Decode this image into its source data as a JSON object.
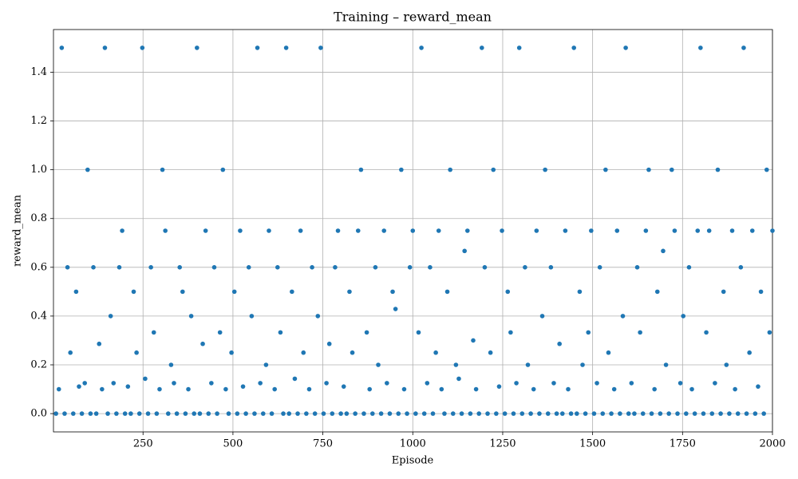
{
  "chart_data": {
    "type": "scatter",
    "title": "Training – reward_mean",
    "x_label": "Episode",
    "y_label": "reward_mean",
    "color": "#1f77b4",
    "grid": true,
    "xlim": [
      1,
      2000
    ],
    "xticks": [
      250,
      500,
      750,
      1000,
      1250,
      1500,
      1750,
      2000
    ],
    "ylim": [
      -0.075,
      1.575
    ],
    "yticks": [
      {
        "value": 0,
        "label": "0.0"
      },
      0.2,
      0.4,
      0.6,
      0.8,
      {
        "value": 1,
        "label": "1.0"
      },
      1.2,
      1.4
    ],
    "x": [
      8,
      16,
      24,
      32,
      40,
      48,
      56,
      64,
      72,
      80,
      88,
      96,
      104,
      112,
      120,
      128,
      136,
      144,
      152,
      160,
      168,
      176,
      184,
      192,
      200,
      208,
      216,
      224,
      232,
      240,
      248,
      256,
      264,
      272,
      280,
      288,
      296,
      304,
      312,
      320,
      328,
      336,
      344,
      352,
      360,
      368,
      376,
      384,
      392,
      400,
      408,
      416,
      424,
      432,
      440,
      448,
      456,
      464,
      472,
      480,
      488,
      496,
      504,
      512,
      520,
      528,
      536,
      544,
      552,
      560,
      568,
      576,
      584,
      592,
      600,
      608,
      616,
      624,
      632,
      640,
      648,
      656,
      664,
      672,
      680,
      688,
      696,
      704,
      712,
      720,
      728,
      736,
      744,
      752,
      760,
      768,
      776,
      784,
      792,
      800,
      808,
      816,
      824,
      832,
      840,
      848,
      856,
      864,
      872,
      880,
      888,
      896,
      904,
      912,
      920,
      928,
      936,
      944,
      952,
      960,
      968,
      976,
      984,
      992,
      1000,
      1008,
      1016,
      1024,
      1032,
      1040,
      1048,
      1056,
      1064,
      1072,
      1080,
      1088,
      1096,
      1104,
      1112,
      1120,
      1128,
      1136,
      1144,
      1152,
      1160,
      1168,
      1176,
      1184,
      1192,
      1200,
      1208,
      1216,
      1224,
      1232,
      1240,
      1248,
      1256,
      1264,
      1272,
      1280,
      1288,
      1296,
      1304,
      1312,
      1320,
      1328,
      1336,
      1344,
      1352,
      1360,
      1368,
      1376,
      1384,
      1392,
      1400,
      1408,
      1416,
      1424,
      1432,
      1440,
      1448,
      1456,
      1464,
      1472,
      1480,
      1488,
      1496,
      1504,
      1512,
      1520,
      1528,
      1536,
      1544,
      1552,
      1560,
      1568,
      1576,
      1584,
      1592,
      1600,
      1608,
      1616,
      1624,
      1632,
      1640,
      1648,
      1656,
      1664,
      1672,
      1680,
      1688,
      1696,
      1704,
      1712,
      1720,
      1728,
      1736,
      1744,
      1752,
      1760,
      1768,
      1776,
      1784,
      1792,
      1800,
      1808,
      1816,
      1824,
      1832,
      1840,
      1848,
      1856,
      1864,
      1872,
      1880,
      1888,
      1896,
      1904,
      1912,
      1920,
      1928,
      1936,
      1944,
      1952,
      1960,
      1968,
      1976,
      1984,
      1992,
      2000
    ],
    "values": [
      0,
      0.1,
      1.5,
      0,
      0.6,
      0.25,
      0,
      0.5,
      0.111,
      0,
      0.125,
      1,
      0,
      0.6,
      0,
      0.286,
      0.1,
      1.5,
      0,
      0.4,
      0.125,
      0,
      0.6,
      0.75,
      0,
      0.111,
      0,
      0.5,
      0.25,
      0,
      1.5,
      0.143,
      0,
      0.6,
      0.333,
      0,
      0.1,
      1,
      0.75,
      0,
      0.2,
      0.125,
      0,
      0.6,
      0.5,
      0,
      0.1,
      0.4,
      0,
      1.5,
      0,
      0.286,
      0.75,
      0,
      0.125,
      0.6,
      0,
      0.333,
      1,
      0.1,
      0,
      0.25,
      0.5,
      0,
      0.75,
      0.111,
      0,
      0.6,
      0.4,
      0,
      1.5,
      0.125,
      0,
      0.2,
      0.75,
      0,
      0.1,
      0.6,
      0.333,
      0,
      1.5,
      0,
      0.5,
      0.143,
      0,
      0.75,
      0.25,
      0,
      0.1,
      0.6,
      0,
      0.4,
      1.5,
      0,
      0.125,
      0.286,
      0,
      0.6,
      0.75,
      0,
      0.111,
      0,
      0.5,
      0.25,
      0,
      0.75,
      1,
      0,
      0.333,
      0.1,
      0,
      0.6,
      0.2,
      0,
      0.75,
      0.125,
      0,
      0.5,
      0.429,
      0,
      1,
      0.1,
      0,
      0.6,
      0.75,
      0,
      0.333,
      1.5,
      0,
      0.125,
      0.6,
      0,
      0.25,
      0.75,
      0.1,
      0,
      0.5,
      1,
      0,
      0.2,
      0.143,
      0,
      0.667,
      0.75,
      0,
      0.3,
      0.1,
      0,
      1.5,
      0.6,
      0,
      0.25,
      1,
      0,
      0.111,
      0.75,
      0,
      0.5,
      0.333,
      0,
      0.125,
      1.5,
      0,
      0.6,
      0.2,
      0,
      0.1,
      0.75,
      0,
      0.4,
      1,
      0,
      0.6,
      0.125,
      0,
      0.286,
      0,
      0.75,
      0.1,
      0,
      1.5,
      0,
      0.5,
      0.2,
      0,
      0.333,
      0.75,
      0,
      0.125,
      0.6,
      0,
      1,
      0.25,
      0,
      0.1,
      0.75,
      0,
      0.4,
      1.5,
      0,
      0.125,
      0,
      0.6,
      0.333,
      0,
      0.75,
      1,
      0,
      0.1,
      0.5,
      0,
      0.667,
      0.2,
      0,
      1,
      0.75,
      0,
      0.125,
      0.4,
      0,
      0.6,
      0.1,
      0,
      0.75,
      1.5,
      0,
      0.333,
      0.75,
      0,
      0.125,
      1,
      0,
      0.5,
      0.2,
      0,
      0.75,
      0.1,
      0,
      0.6,
      1.5,
      0,
      0.25,
      0.75,
      0,
      0.111,
      0.5,
      0,
      1,
      0.333,
      0.75
    ]
  }
}
